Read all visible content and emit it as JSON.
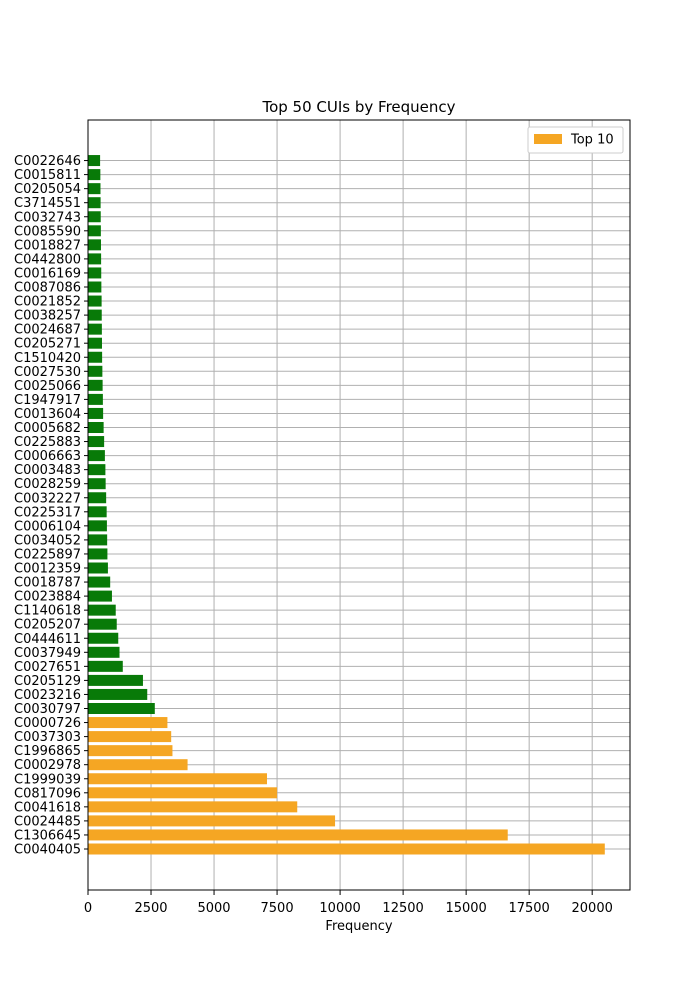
{
  "chart_data": {
    "type": "bar",
    "orientation": "horizontal",
    "title": "Top 50 CUIs by Frequency",
    "xlabel": "Frequency",
    "ylabel": "",
    "xlim": [
      0,
      21500
    ],
    "x_ticks": [
      0,
      2500,
      5000,
      7500,
      10000,
      12500,
      15000,
      17500,
      20000
    ],
    "grid": true,
    "legend": {
      "position": "top-right",
      "entries": [
        {
          "label": "Top 10",
          "color": "#f5a623"
        }
      ]
    },
    "colors": {
      "top10": "#f5a623",
      "other": "#087a08"
    },
    "categories": [
      "C0040405",
      "C1306645",
      "C0024485",
      "C0041618",
      "C0817096",
      "C1999039",
      "C0002978",
      "C1996865",
      "C0037303",
      "C0000726",
      "C0030797",
      "C0023216",
      "C0205129",
      "C0027651",
      "C0037949",
      "C0444611",
      "C0205207",
      "C1140618",
      "C0023884",
      "C0018787",
      "C0012359",
      "C0225897",
      "C0034052",
      "C0006104",
      "C0225317",
      "C0032227",
      "C0028259",
      "C0003483",
      "C0006663",
      "C0225883",
      "C0005682",
      "C0013604",
      "C1947917",
      "C0025066",
      "C0027530",
      "C1510420",
      "C0205271",
      "C0024687",
      "C0038257",
      "C0021852",
      "C0087086",
      "C0016169",
      "C0442800",
      "C0018827",
      "C0085590",
      "C0032743",
      "C3714551",
      "C0205054",
      "C0015811",
      "C0022646"
    ],
    "values": [
      20500,
      16650,
      9800,
      8300,
      7500,
      7100,
      3950,
      3350,
      3300,
      3150,
      2650,
      2350,
      2180,
      1380,
      1250,
      1200,
      1140,
      1100,
      950,
      880,
      790,
      770,
      760,
      750,
      740,
      720,
      700,
      690,
      670,
      640,
      620,
      600,
      590,
      580,
      570,
      560,
      555,
      550,
      545,
      540,
      530,
      525,
      520,
      515,
      510,
      505,
      500,
      495,
      490,
      480
    ],
    "top_n": 10
  }
}
